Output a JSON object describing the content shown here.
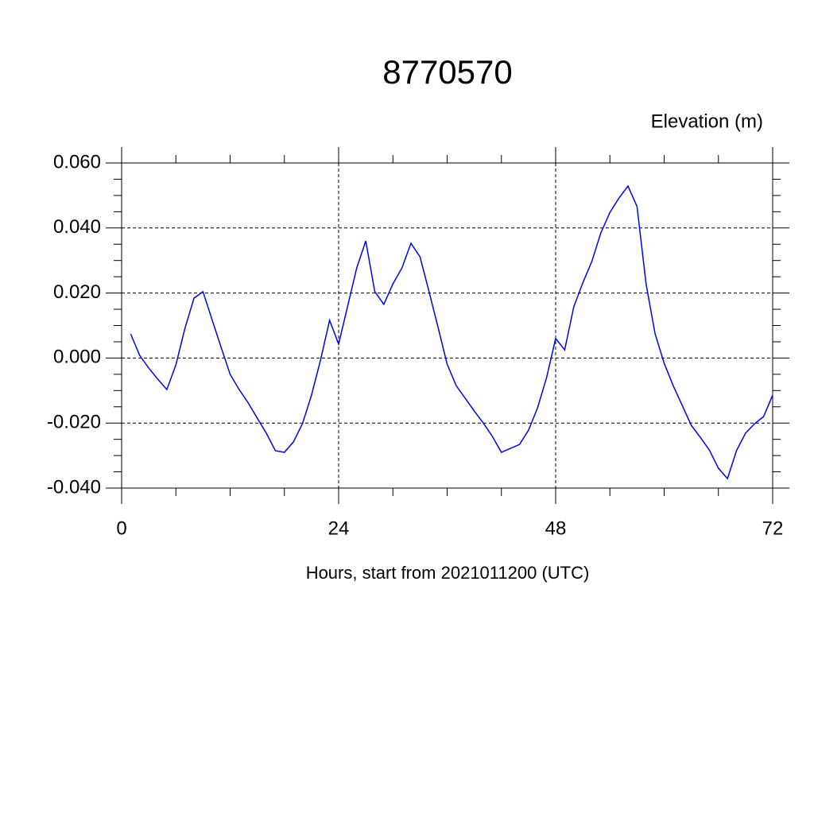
{
  "chart_data": {
    "type": "line",
    "title": "8770570",
    "subtitle": "Elevation (m)",
    "x_label": "Hours, start from 2021011200 (UTC)",
    "x": [
      1,
      2,
      3,
      4,
      5,
      6,
      7,
      8,
      9,
      10,
      11,
      12,
      13,
      14,
      15,
      16,
      17,
      18,
      19,
      20,
      21,
      22,
      23,
      24,
      25,
      26,
      27,
      28,
      29,
      30,
      31,
      32,
      33,
      34,
      35,
      36,
      37,
      38,
      39,
      40,
      41,
      42,
      43,
      44,
      45,
      46,
      47,
      48,
      49,
      50,
      51,
      52,
      53,
      54,
      55,
      56,
      57,
      58,
      59,
      60,
      61,
      62,
      63,
      64,
      65,
      66,
      67,
      68,
      69,
      70,
      71,
      72
    ],
    "series": [
      {
        "color": "#0000ff",
        "values": [
          0.0074,
          0.0008,
          -0.0031,
          -0.0065,
          -0.0097,
          -0.0021,
          0.0091,
          0.0184,
          0.0204,
          0.0118,
          0.0033,
          -0.005,
          -0.0097,
          -0.0138,
          -0.0185,
          -0.0231,
          -0.0285,
          -0.029,
          -0.0258,
          -0.0202,
          -0.0114,
          -0.0006,
          0.0116,
          0.0043,
          0.016,
          0.0277,
          0.036,
          0.0204,
          0.0165,
          0.0228,
          0.0277,
          0.0353,
          0.0311,
          0.0204,
          0.0094,
          -0.0019,
          -0.0085,
          -0.0124,
          -0.0163,
          -0.02,
          -0.0241,
          -0.029,
          -0.0278,
          -0.0266,
          -0.0222,
          -0.0153,
          -0.006,
          0.006,
          0.0025,
          0.0157,
          0.0231,
          0.0297,
          0.0385,
          0.0448,
          0.0492,
          0.0529,
          0.0466,
          0.0228,
          0.0074,
          -0.0016,
          -0.0085,
          -0.0146,
          -0.0207,
          -0.0244,
          -0.0283,
          -0.0339,
          -0.0371,
          -0.0285,
          -0.0231,
          -0.0202,
          -0.018,
          -0.0114
        ]
      }
    ],
    "xlim": [
      0,
      72
    ],
    "xticks": [
      0,
      24,
      48,
      72
    ],
    "ylim": [
      -0.04,
      0.06
    ],
    "yticks": [
      {
        "value": -0.04,
        "label": "-0.040"
      },
      {
        "value": -0.02,
        "label": "-0.020"
      },
      {
        "value": 0,
        "label": "0.000"
      },
      {
        "value": 0.02,
        "label": "0.020"
      },
      {
        "value": 0.04,
        "label": "0.040"
      },
      {
        "value": 0.06,
        "label": "0.060"
      }
    ],
    "grid": true
  }
}
